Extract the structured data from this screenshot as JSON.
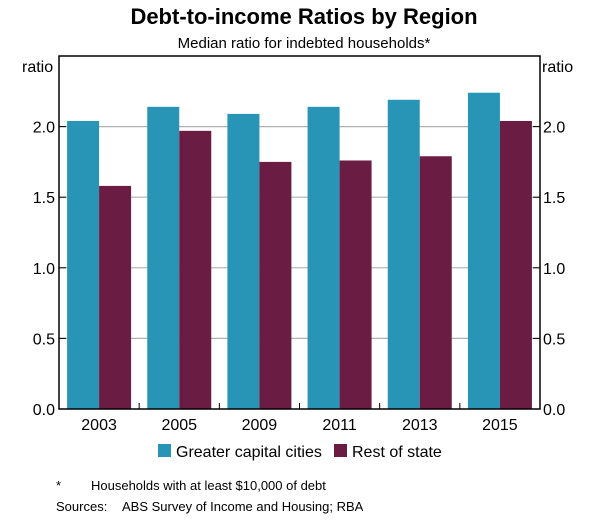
{
  "chart_data": {
    "type": "bar",
    "title": "Debt-to-income Ratios by Region",
    "subtitle": "Median ratio for indebted households*",
    "ylabel_left": "ratio",
    "ylabel_right": "ratio",
    "ylim": [
      0,
      2.5
    ],
    "yticks": [
      "0.0",
      "0.5",
      "1.0",
      "1.5",
      "2.0"
    ],
    "ytick_values": [
      0,
      0.5,
      1.0,
      1.5,
      2.0
    ],
    "grid": true,
    "categories": [
      "2003",
      "2005",
      "2009",
      "2011",
      "2013",
      "2015"
    ],
    "series": [
      {
        "name": "Greater capital cities",
        "color": "#2995b6",
        "values": [
          2.04,
          2.14,
          2.09,
          2.14,
          2.19,
          2.24
        ]
      },
      {
        "name": "Rest of state",
        "color": "#6b1c42",
        "values": [
          1.58,
          1.97,
          1.75,
          1.76,
          1.79,
          2.04
        ]
      }
    ],
    "legend_placement": "bottom",
    "footnote_marker": "*",
    "footnote": "Households with at least $10,000 of debt",
    "sources_label": "Sources:",
    "sources": "ABS Survey of Income and Housing; RBA"
  }
}
